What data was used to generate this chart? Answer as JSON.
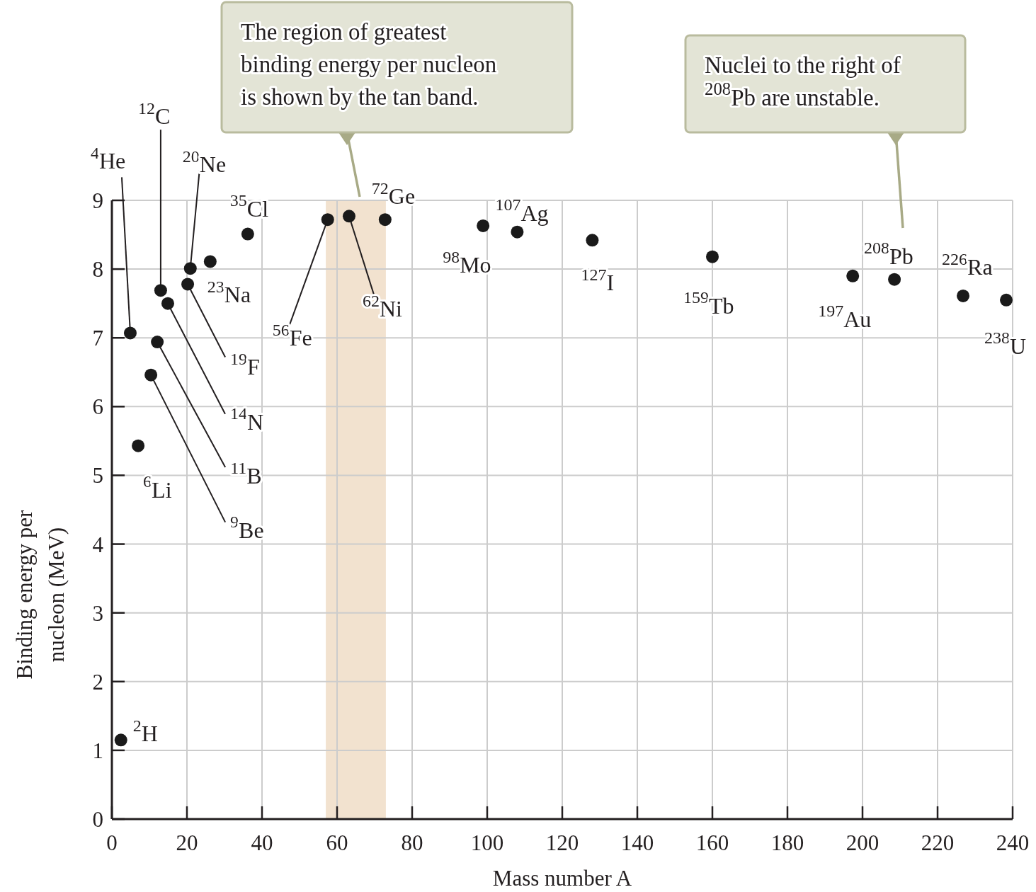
{
  "chart_data": {
    "type": "scatter",
    "xlabel": "Mass number A",
    "ylabel": "Binding energy per nucleon (MeV)",
    "xlim": [
      0,
      240
    ],
    "xticks": [
      0,
      20,
      40,
      60,
      80,
      100,
      120,
      140,
      160,
      180,
      200,
      220,
      240
    ],
    "ylim": [
      0,
      9
    ],
    "yticks": [
      0,
      1,
      2,
      3,
      4,
      5,
      6,
      7,
      8,
      9
    ],
    "grid": true,
    "marker": "circle",
    "x": [
      2.4,
      4.9,
      7,
      10.4,
      12.1,
      13,
      14.9,
      20.2,
      20.9,
      26.2,
      36.2,
      57.5,
      63.2,
      72.8,
      98.9,
      108,
      128,
      160,
      197.4,
      208.5,
      226.8,
      238.3
    ],
    "series": [
      {
        "color": "#1a1a1a",
        "values": [
          1.15,
          7.07,
          5.43,
          6.46,
          6.94,
          7.69,
          7.5,
          7.78,
          8.01,
          8.11,
          8.51,
          8.72,
          8.77,
          8.72,
          8.63,
          8.54,
          8.42,
          8.18,
          7.9,
          7.85,
          7.61,
          7.55
        ]
      }
    ],
    "bands": [
      {
        "axis": "x",
        "from": 57,
        "to": 73,
        "color": "#f2e2cf"
      }
    ],
    "annotations": [
      {
        "text": "$^{2}$H",
        "x": 2.4,
        "y": 1.15
      },
      {
        "text": "$^{4}$He",
        "x": 4.9,
        "y": 7.07
      },
      {
        "text": "$^{6}$Li",
        "x": 7,
        "y": 5.43
      },
      {
        "text": "$^{9}$Be",
        "x": 10.4,
        "y": 6.46
      },
      {
        "text": "$^{11}$B",
        "x": 12.1,
        "y": 6.94
      },
      {
        "text": "$^{12}$C",
        "x": 13,
        "y": 7.69
      },
      {
        "text": "$^{14}$N",
        "x": 14.9,
        "y": 7.5
      },
      {
        "text": "$^{19}$F",
        "x": 20.2,
        "y": 7.78
      },
      {
        "text": "$^{20}$Ne",
        "x": 20.9,
        "y": 8.01
      },
      {
        "text": "$^{23}$Na",
        "x": 26.2,
        "y": 8.11
      },
      {
        "text": "$^{35}$Cl",
        "x": 36.2,
        "y": 8.51
      },
      {
        "text": "$^{56}$Fe",
        "x": 57.5,
        "y": 8.72
      },
      {
        "text": "$^{62}$Ni",
        "x": 63.2,
        "y": 8.77
      },
      {
        "text": "$^{72}$Ge",
        "x": 72.8,
        "y": 8.72
      },
      {
        "text": "$^{98}$Mo",
        "x": 98.9,
        "y": 8.63
      },
      {
        "text": "$^{107}$Ag",
        "x": 108,
        "y": 8.54
      },
      {
        "text": "$^{127}$I",
        "x": 128,
        "y": 8.42
      },
      {
        "text": "$^{159}$Tb",
        "x": 160,
        "y": 8.18
      },
      {
        "text": "$^{197}$Au",
        "x": 197.4,
        "y": 7.9
      },
      {
        "text": "$^{208}$Pb",
        "x": 208.5,
        "y": 7.85
      },
      {
        "text": "$^{226}$Ra",
        "x": 226.8,
        "y": 7.61
      },
      {
        "text": "$^{238}$U",
        "x": 238.3,
        "y": 7.55
      },
      "The region of greatest binding energy per nucleon is shown by the tan band.",
      "Nuclei to the right of $^{208}$Pb are unstable."
    ]
  }
}
